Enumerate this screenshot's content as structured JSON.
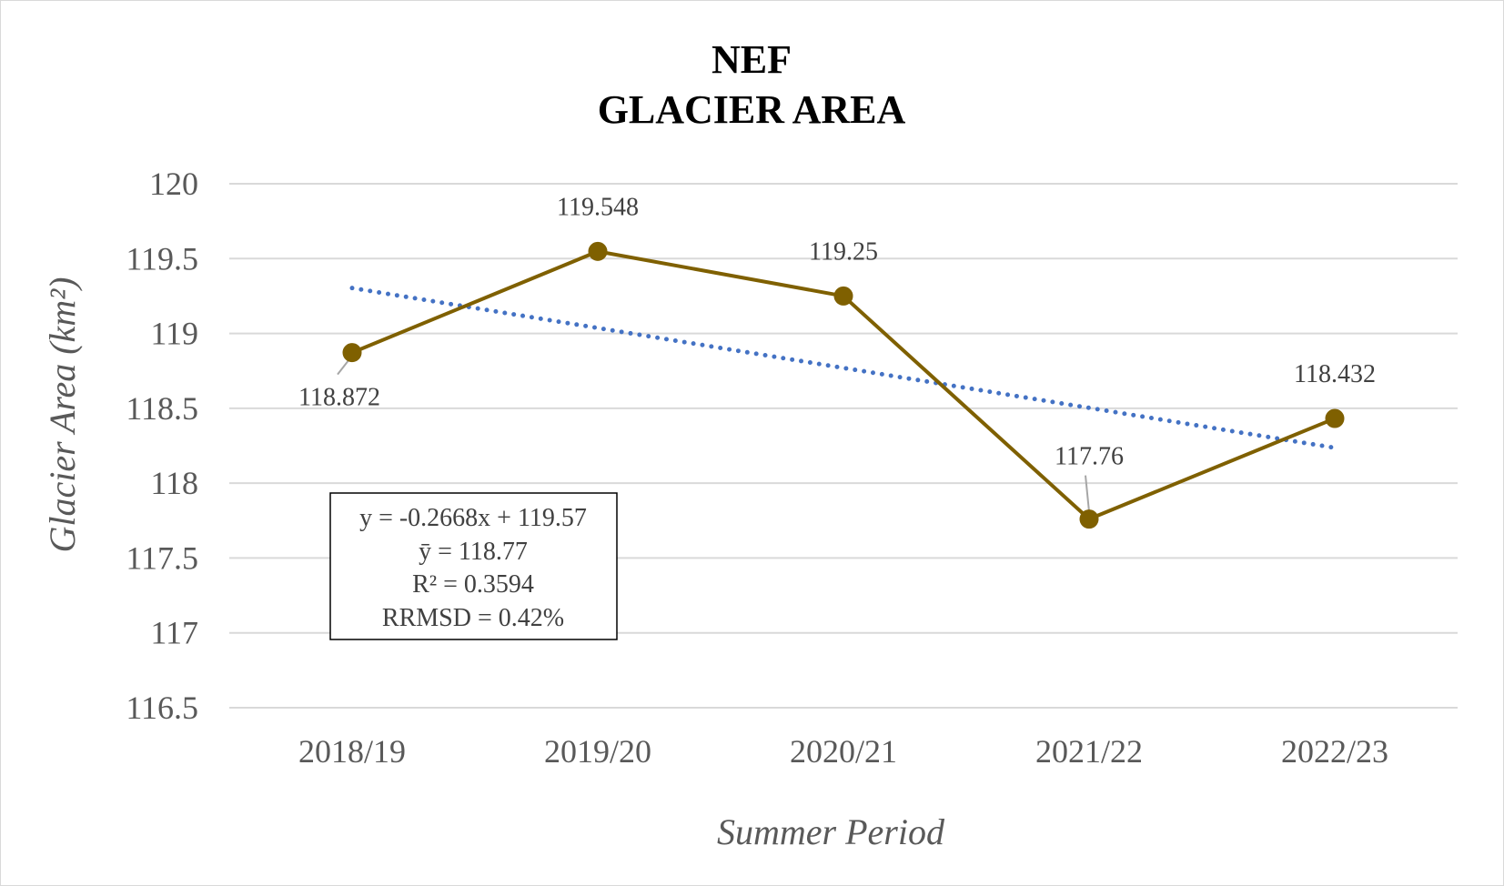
{
  "chart_data": {
    "type": "line",
    "title_lines": [
      "NEF",
      "GLACIER AREA"
    ],
    "xlabel": "Summer Period",
    "ylabel": "Glacier Area (km²)",
    "categories": [
      "2018/19",
      "2019/20",
      "2020/21",
      "2021/22",
      "2022/23"
    ],
    "series": [
      {
        "values": [
          118.872,
          119.548,
          119.25,
          117.76,
          118.432
        ],
        "data_labels": [
          "118.872",
          "119.548",
          "119.25",
          "117.76",
          "118.432"
        ],
        "color": "#7F6000"
      }
    ],
    "trendline": {
      "type": "linear",
      "slope": -0.2668,
      "intercept": 119.57,
      "color": "#4472C4",
      "style": "dotted"
    },
    "ylim": [
      116.5,
      120
    ],
    "yticks": [
      "116.5",
      "117",
      "117.5",
      "118",
      "118.5",
      "119",
      "119.5",
      "120"
    ],
    "grid": true,
    "legend": "none",
    "stats_box": [
      "y = -0.2668x + 119.57",
      "ȳ = 118.77",
      "R² = 0.3594",
      "RRMSD = 0.42%"
    ]
  }
}
